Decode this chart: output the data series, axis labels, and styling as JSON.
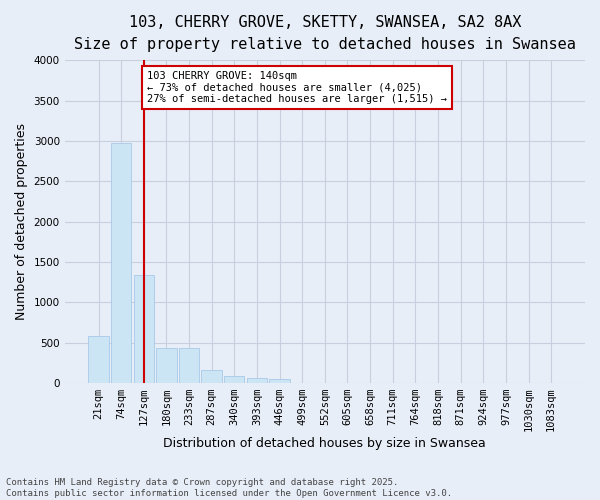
{
  "title_line1": "103, CHERRY GROVE, SKETTY, SWANSEA, SA2 8AX",
  "title_line2": "Size of property relative to detached houses in Swansea",
  "xlabel": "Distribution of detached houses by size in Swansea",
  "ylabel": "Number of detached properties",
  "bar_color": "#cce5f5",
  "bar_edge_color": "#a8c8e8",
  "grid_color": "#c8d0e0",
  "background_color": "#e8eef8",
  "categories": [
    "21sqm",
    "74sqm",
    "127sqm",
    "180sqm",
    "233sqm",
    "287sqm",
    "340sqm",
    "393sqm",
    "446sqm",
    "499sqm",
    "552sqm",
    "605sqm",
    "658sqm",
    "711sqm",
    "764sqm",
    "818sqm",
    "871sqm",
    "924sqm",
    "977sqm",
    "1030sqm",
    "1083sqm"
  ],
  "values": [
    580,
    2970,
    1340,
    430,
    430,
    155,
    80,
    60,
    50,
    0,
    0,
    0,
    0,
    0,
    0,
    0,
    0,
    0,
    0,
    0,
    0
  ],
  "ylim": [
    0,
    4000
  ],
  "yticks": [
    0,
    500,
    1000,
    1500,
    2000,
    2500,
    3000,
    3500,
    4000
  ],
  "property_line_x": 2.0,
  "annotation_text": "103 CHERRY GROVE: 140sqm\n← 73% of detached houses are smaller (4,025)\n27% of semi-detached houses are larger (1,515) →",
  "annotation_box_color": "#ffffff",
  "annotation_box_edge": "#cc0000",
  "vline_color": "#cc0000",
  "footer_line1": "Contains HM Land Registry data © Crown copyright and database right 2025.",
  "footer_line2": "Contains public sector information licensed under the Open Government Licence v3.0.",
  "title_fontsize": 11,
  "subtitle_fontsize": 10,
  "axis_label_fontsize": 9,
  "tick_fontsize": 7.5,
  "annotation_fontsize": 7.5,
  "footer_fontsize": 6.5
}
